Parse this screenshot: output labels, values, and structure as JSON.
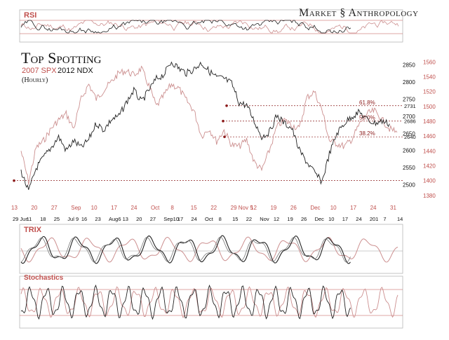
{
  "brand": "Market § Anthropology",
  "title": "Top Spotting",
  "subtitle_red": "2007 SPX",
  "subtitle_black": "2012 NDX",
  "interval": "(Hourly)",
  "panels": {
    "rsi": "RSI",
    "trix": "TRIX",
    "stochastics": "Stochastics"
  },
  "colors": {
    "red": "#c0504d",
    "pink": "#cc8f8f",
    "black": "#222222",
    "dark_red": "#8b1a1a",
    "grid": "#c9c9c9"
  },
  "chart_data": {
    "type": "line",
    "title": "Top Spotting",
    "subtitle": "2007 SPX 2012 NDX (Hourly)",
    "top_axis_labels": [
      "13",
      "20",
      "27",
      "Sep",
      "10",
      "17",
      "24",
      "Oct",
      "8",
      "15",
      "22",
      "29 Nov 5",
      "12",
      "19",
      "26",
      "Dec",
      "10",
      "17",
      "24",
      "31"
    ],
    "bottom_axis_labels": [
      "29 Jun",
      "11",
      "18",
      "25",
      "Jul 9",
      "16",
      "23",
      "Aug6",
      "13",
      "20",
      "27",
      "Sep10",
      "17",
      "24",
      "Oct",
      "8",
      "15",
      "22",
      "Nov",
      "12",
      "19",
      "26",
      "Dec",
      "10",
      "17",
      "24",
      "201",
      "7",
      "14"
    ],
    "y_left": {
      "ticks": [
        2500,
        2550,
        2600,
        2650,
        2700,
        2750,
        2800,
        2850
      ],
      "range": [
        2462,
        2872
      ]
    },
    "y_right": {
      "ticks": [
        1380,
        1400,
        1420,
        1440,
        1460,
        1480,
        1500,
        1520,
        1540,
        1560
      ],
      "range": [
        1377,
        1566
      ]
    },
    "fib_levels": [
      {
        "label": "61.8%",
        "ndx": 2731
      },
      {
        "label": "50.0%",
        "ndx": 2686
      },
      {
        "label": "38.2%",
        "ndx": 2640
      }
    ],
    "support_level": {
      "spx": 1400
    },
    "series": [
      {
        "name": "2007 SPX",
        "axis": "right",
        "x": [
          0,
          2,
          4,
          6,
          8,
          10,
          12,
          14,
          16,
          18,
          20,
          22,
          24,
          26,
          28,
          30,
          32,
          34,
          36,
          38,
          40,
          42,
          44,
          46,
          48,
          50,
          52,
          54,
          56,
          58,
          60,
          62,
          64,
          66,
          68,
          70,
          72,
          74,
          76,
          78,
          80,
          82,
          84,
          86,
          88,
          90,
          92,
          94,
          96,
          98,
          100
        ],
        "values": [
          1440,
          1398,
          1444,
          1454,
          1470,
          1482,
          1490,
          1470,
          1510,
          1530,
          1510,
          1522,
          1533,
          1545,
          1548,
          1542,
          1551,
          1528,
          1500,
          1515,
          1530,
          1524,
          1508,
          1494,
          1460,
          1470,
          1453,
          1468,
          1448,
          1446,
          1455,
          1425,
          1414,
          1440,
          1472,
          1482,
          1475,
          1470,
          1512,
          1520,
          1496,
          1454,
          1450,
          1446,
          1456,
          1476,
          1490,
          1494,
          1482,
          1470,
          1465
        ]
      },
      {
        "name": "2012 NDX",
        "axis": "left",
        "x": [
          0,
          2,
          4,
          6,
          8,
          10,
          12,
          14,
          16,
          18,
          20,
          22,
          24,
          26,
          28,
          30,
          32,
          34,
          36,
          38,
          40,
          42,
          44,
          46,
          48,
          50,
          52,
          54,
          56,
          58,
          60,
          62,
          64,
          66,
          68,
          70,
          72,
          74,
          76,
          78,
          80,
          82,
          84,
          86,
          88,
          90,
          92,
          94,
          96,
          98
        ],
        "values": [
          2540,
          2480,
          2548,
          2580,
          2608,
          2640,
          2600,
          2628,
          2608,
          2632,
          2680,
          2660,
          2690,
          2700,
          2740,
          2776,
          2742,
          2776,
          2810,
          2822,
          2860,
          2840,
          2826,
          2838,
          2856,
          2832,
          2814,
          2810,
          2796,
          2740,
          2732,
          2686,
          2640,
          2653,
          2702,
          2680,
          2665,
          2600,
          2566,
          2536,
          2508,
          2590,
          2650,
          2680,
          2700,
          2712,
          2690,
          2680,
          2686,
          2678
        ]
      }
    ]
  }
}
